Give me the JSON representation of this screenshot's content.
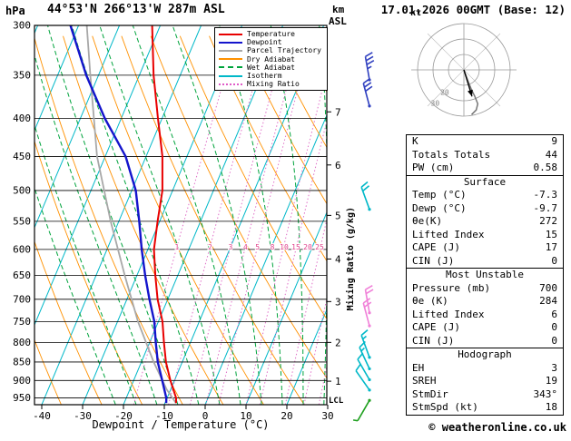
{
  "header": {
    "left_unit": "hPa",
    "station": "44°53'N 266°13'W 287m ASL",
    "date": "17.01.2026 00GMT (Base: 12)",
    "km_label": "km",
    "asl_label": "ASL",
    "kt_label": "kt"
  },
  "axes": {
    "pressure_ticks": [
      300,
      350,
      400,
      450,
      500,
      550,
      600,
      650,
      700,
      750,
      800,
      850,
      900,
      950
    ],
    "temp_ticks": [
      -40,
      -30,
      -20,
      -10,
      0,
      10,
      20,
      30
    ],
    "xlabel": "Dewpoint / Temperature (°C)",
    "km_ticks": [
      1,
      2,
      3,
      4,
      5,
      6,
      7
    ],
    "mixing_ratio_label": "Mixing Ratio (g/kg)",
    "lcl_label": "LCL"
  },
  "legend": [
    {
      "label": "Temperature",
      "color": "#e80000",
      "style": "solid"
    },
    {
      "label": "Dewpoint",
      "color": "#1414cc",
      "style": "solid"
    },
    {
      "label": "Parcel Trajectory",
      "color": "#a8a8a8",
      "style": "solid"
    },
    {
      "label": "Dry Adiabat",
      "color": "#ff9100",
      "style": "solid"
    },
    {
      "label": "Wet Adiabat",
      "color": "#00a33c",
      "style": "dashed"
    },
    {
      "label": "Isotherm",
      "color": "#00b8c8",
      "style": "solid"
    },
    {
      "label": "Mixing Ratio",
      "color": "#e05cc8",
      "style": "dotted"
    }
  ],
  "colors": {
    "temperature": "#e80000",
    "dewpoint": "#1414cc",
    "parcel": "#a8a8a8",
    "dry_adiabat": "#ff9100",
    "wet_adiabat": "#00a33c",
    "isotherm": "#00b8c8",
    "mixing_ratio": "#e070c8",
    "mixing_ratio_label": "#e0408c",
    "grid": "#000000"
  },
  "chart_data": {
    "type": "skewt-logp",
    "title": "44°53'N 266°13'W 287m ASL",
    "valid": "17.01.2026 00GMT (Base: 12)",
    "pressure_range": [
      300,
      970
    ],
    "isotherm_step": 10,
    "dry_adiabats_K": [
      230,
      240,
      250,
      260,
      270,
      280,
      290,
      300,
      310,
      320,
      330,
      340,
      350,
      360,
      370,
      380,
      390
    ],
    "wet_adiabats_C": [
      -20,
      -15,
      -10,
      -5,
      0,
      5,
      10,
      15,
      20,
      25,
      30
    ],
    "mixing_ratio_gkg": [
      1,
      2,
      3,
      4,
      5,
      8,
      10,
      15,
      20,
      25
    ],
    "temperature_profile": [
      [
        965,
        -7.3
      ],
      [
        950,
        -7.8
      ],
      [
        900,
        -11
      ],
      [
        850,
        -14
      ],
      [
        800,
        -16.5
      ],
      [
        750,
        -19
      ],
      [
        700,
        -22.5
      ],
      [
        650,
        -25.5
      ],
      [
        600,
        -28.5
      ],
      [
        550,
        -30.5
      ],
      [
        500,
        -32.5
      ],
      [
        450,
        -36
      ],
      [
        400,
        -41
      ],
      [
        350,
        -46.5
      ],
      [
        300,
        -52
      ]
    ],
    "dewpoint_profile": [
      [
        965,
        -9.7
      ],
      [
        950,
        -10.2
      ],
      [
        900,
        -13
      ],
      [
        850,
        -16
      ],
      [
        800,
        -18.5
      ],
      [
        750,
        -21
      ],
      [
        700,
        -24.5
      ],
      [
        650,
        -28
      ],
      [
        600,
        -31.5
      ],
      [
        550,
        -35
      ],
      [
        500,
        -39
      ],
      [
        450,
        -45
      ],
      [
        400,
        -54
      ],
      [
        350,
        -63
      ],
      [
        300,
        -72
      ]
    ],
    "parcel_profile": [
      [
        965,
        -7.3
      ],
      [
        925,
        -11
      ],
      [
        850,
        -17
      ],
      [
        750,
        -25
      ],
      [
        650,
        -33
      ],
      [
        550,
        -42
      ],
      [
        450,
        -52
      ],
      [
        350,
        -62
      ],
      [
        300,
        -68
      ]
    ],
    "lcl_hPa": 958,
    "km_pressures": {
      "1": 902,
      "2": 800,
      "3": 705,
      "4": 618,
      "5": 540,
      "6": 462,
      "7": 392
    },
    "winds": [
      {
        "p_hPa": 957,
        "spd_kt": 5,
        "dir_deg": 210,
        "color": "#20a020"
      },
      {
        "p_hPa": 927,
        "spd_kt": 10,
        "dir_deg": 325,
        "color": "#00b8c8"
      },
      {
        "p_hPa": 898,
        "spd_kt": 10,
        "dir_deg": 330,
        "color": "#00b8c8"
      },
      {
        "p_hPa": 868,
        "spd_kt": 15,
        "dir_deg": 335,
        "color": "#00b8c8"
      },
      {
        "p_hPa": 838,
        "spd_kt": 15,
        "dir_deg": 340,
        "color": "#00b8c8"
      },
      {
        "p_hPa": 760,
        "spd_kt": 20,
        "dir_deg": 345,
        "color": "#f080d8"
      },
      {
        "p_hPa": 730,
        "spd_kt": 20,
        "dir_deg": 350,
        "color": "#f080d8"
      },
      {
        "p_hPa": 530,
        "spd_kt": 20,
        "dir_deg": 340,
        "color": "#00b8c8"
      },
      {
        "p_hPa": 385,
        "spd_kt": 30,
        "dir_deg": 345,
        "color": "#3040c0"
      },
      {
        "p_hPa": 355,
        "spd_kt": 35,
        "dir_deg": 350,
        "color": "#3040c0"
      }
    ]
  },
  "hodograph": {
    "unit_label": "kt",
    "rings_kt": [
      10,
      20,
      30
    ],
    "ring_labels_kt": [
      20,
      30
    ],
    "trace_kt": [
      [
        3,
        -8
      ],
      [
        5,
        -13
      ],
      [
        7,
        -17
      ],
      [
        9,
        -22
      ],
      [
        8,
        -26
      ],
      [
        5,
        -29
      ]
    ],
    "storm_motion": {
      "dir_deg": 343,
      "spd_kt": 18
    }
  },
  "stats": {
    "sections": [
      {
        "title": null,
        "rows": [
          [
            "K",
            "9"
          ],
          [
            "Totals Totals",
            "44"
          ],
          [
            "PW (cm)",
            "0.58"
          ]
        ]
      },
      {
        "title": "Surface",
        "rows": [
          [
            "Temp (°C)",
            "-7.3"
          ],
          [
            "Dewp (°C)",
            "-9.7"
          ],
          [
            "θe(K)",
            "272"
          ],
          [
            "Lifted Index",
            "15"
          ],
          [
            "CAPE (J)",
            "17"
          ],
          [
            "CIN (J)",
            "0"
          ]
        ]
      },
      {
        "title": "Most Unstable",
        "rows": [
          [
            "Pressure (mb)",
            "700"
          ],
          [
            "θe (K)",
            "284"
          ],
          [
            "Lifted Index",
            "6"
          ],
          [
            "CAPE (J)",
            "0"
          ],
          [
            "CIN (J)",
            "0"
          ]
        ]
      },
      {
        "title": "Hodograph",
        "rows": [
          [
            "EH",
            "3"
          ],
          [
            "SREH",
            "19"
          ],
          [
            "StmDir",
            "343°"
          ],
          [
            "StmSpd (kt)",
            "18"
          ]
        ]
      }
    ]
  },
  "footer": {
    "copyright": "© weatheronline.co.uk"
  }
}
